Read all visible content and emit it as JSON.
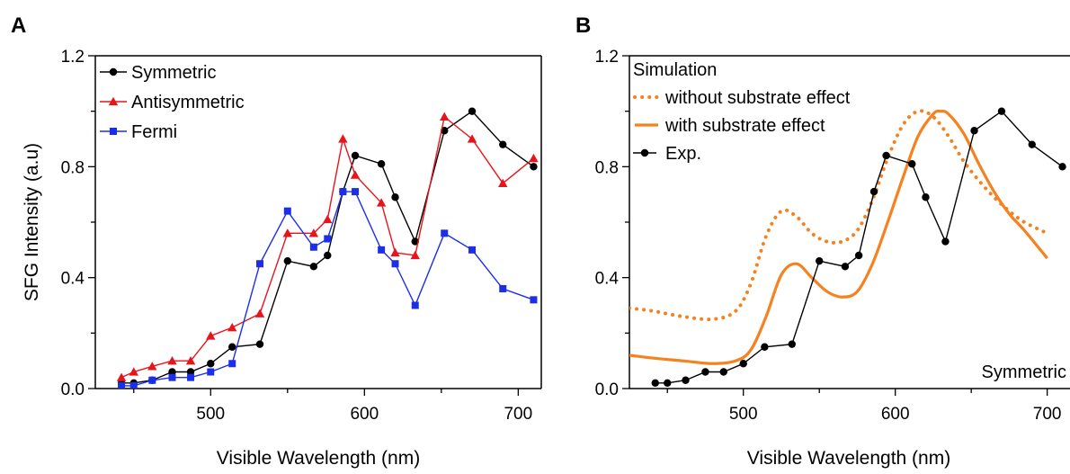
{
  "chart_data": [
    {
      "panel_label": "A",
      "type": "line",
      "xlabel": "Visible Wavelength (nm)",
      "ylabel": "SFG Intensity (a.u)",
      "xlim": [
        425,
        715
      ],
      "ylim": [
        0,
        1.2
      ],
      "x_ticks": [
        500,
        600,
        700
      ],
      "y_ticks": [
        "0.0",
        "0.4",
        "0.8",
        "1.2"
      ],
      "y_tick_values": [
        0,
        0.4,
        0.8,
        1.2
      ],
      "legend_position": "top-left",
      "series": [
        {
          "name": "Symmetric",
          "color": "#000000",
          "marker": "circle",
          "x": [
            442,
            450,
            462,
            475,
            487,
            500,
            514,
            532,
            550,
            567,
            576,
            586,
            594,
            611,
            620,
            633,
            652,
            670,
            690,
            710
          ],
          "y": [
            0.02,
            0.02,
            0.03,
            0.06,
            0.06,
            0.09,
            0.15,
            0.16,
            0.46,
            0.44,
            0.48,
            0.71,
            0.84,
            0.81,
            0.69,
            0.53,
            0.93,
            1.0,
            0.88,
            0.8
          ]
        },
        {
          "name": "Antisymmetric",
          "color": "#e8141c",
          "marker": "triangle",
          "x": [
            442,
            450,
            462,
            475,
            487,
            500,
            514,
            532,
            550,
            567,
            576,
            586,
            594,
            611,
            620,
            633,
            652,
            670,
            690,
            710
          ],
          "y": [
            0.04,
            0.06,
            0.08,
            0.1,
            0.1,
            0.19,
            0.22,
            0.27,
            0.56,
            0.56,
            0.61,
            0.9,
            0.77,
            0.67,
            0.49,
            0.48,
            0.98,
            0.9,
            0.74,
            0.83
          ]
        },
        {
          "name": "Fermi",
          "color": "#1c2ee8",
          "marker": "square",
          "x": [
            442,
            450,
            462,
            475,
            487,
            500,
            514,
            532,
            550,
            567,
            576,
            586,
            594,
            611,
            620,
            633,
            652,
            670,
            690,
            710
          ],
          "y": [
            0.01,
            0.01,
            0.03,
            0.04,
            0.04,
            0.06,
            0.09,
            0.45,
            0.64,
            0.51,
            0.54,
            0.71,
            0.71,
            0.5,
            0.45,
            0.3,
            0.56,
            0.5,
            0.36,
            0.32
          ]
        }
      ]
    },
    {
      "panel_label": "B",
      "type": "line",
      "xlabel": "Visible Wavelength (nm)",
      "ylabel": "",
      "xlim": [
        425,
        715
      ],
      "ylim": [
        0,
        1.2
      ],
      "x_ticks": [
        500,
        600,
        700
      ],
      "y_ticks": [
        "0.0",
        "0.4",
        "0.8",
        "1.2"
      ],
      "y_tick_values": [
        0,
        0.4,
        0.8,
        1.2
      ],
      "legend_title": "Simulation",
      "legend_position": "top-left",
      "annotation": "Symmetric",
      "series": [
        {
          "name": "without substrate effect",
          "color": "#f5811f",
          "style": "dotted",
          "x": [
            425,
            440,
            460,
            480,
            495,
            505,
            515,
            525,
            535,
            545,
            555,
            565,
            575,
            585,
            595,
            605,
            615,
            625,
            635,
            645,
            655,
            665,
            675,
            685,
            700
          ],
          "y": [
            0.29,
            0.28,
            0.26,
            0.25,
            0.28,
            0.38,
            0.55,
            0.64,
            0.62,
            0.56,
            0.53,
            0.53,
            0.57,
            0.68,
            0.83,
            0.95,
            1.0,
            0.98,
            0.91,
            0.82,
            0.75,
            0.69,
            0.64,
            0.6,
            0.56
          ]
        },
        {
          "name": "with substrate effect",
          "color": "#f5811f",
          "style": "solid",
          "x": [
            425,
            440,
            460,
            480,
            495,
            505,
            515,
            525,
            535,
            545,
            555,
            565,
            575,
            585,
            595,
            605,
            615,
            625,
            630,
            635,
            645,
            655,
            665,
            675,
            685,
            700
          ],
          "y": [
            0.12,
            0.11,
            0.1,
            0.09,
            0.1,
            0.14,
            0.26,
            0.41,
            0.45,
            0.4,
            0.35,
            0.33,
            0.35,
            0.45,
            0.6,
            0.76,
            0.91,
            0.99,
            1.0,
            0.99,
            0.92,
            0.81,
            0.71,
            0.63,
            0.57,
            0.47
          ]
        },
        {
          "name": "Exp.",
          "color": "#000000",
          "marker": "circle",
          "x": [
            442,
            450,
            462,
            475,
            487,
            500,
            514,
            532,
            550,
            567,
            576,
            586,
            594,
            611,
            620,
            633,
            652,
            670,
            690,
            710
          ],
          "y": [
            0.02,
            0.02,
            0.03,
            0.06,
            0.06,
            0.09,
            0.15,
            0.16,
            0.46,
            0.44,
            0.48,
            0.71,
            0.84,
            0.81,
            0.69,
            0.53,
            0.93,
            1.0,
            0.88,
            0.8
          ]
        }
      ]
    }
  ]
}
